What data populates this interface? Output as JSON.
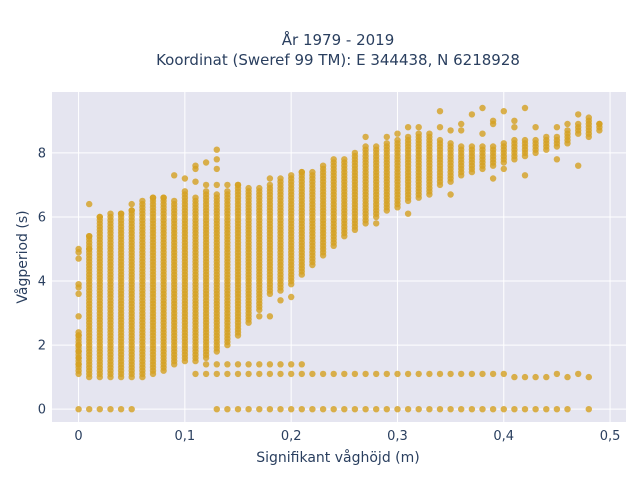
{
  "chart_data": {
    "type": "scatter",
    "title_line1": "År 1979 - 2019",
    "title_line2": "Koordinat (Sweref 99 TM): E 344438, N 6218928",
    "xlabel": "Signifikant våghöjd (m)",
    "ylabel": "Vågperiod (s)",
    "xlim": [
      -0.025,
      0.515
    ],
    "ylim": [
      -0.4,
      9.9
    ],
    "x_ticks": [
      0,
      0.1,
      0.2,
      0.3,
      0.4,
      0.5
    ],
    "x_tick_labels": [
      "0",
      "0,1",
      "0,2",
      "0,3",
      "0,4",
      "0,5"
    ],
    "y_ticks": [
      0,
      2,
      4,
      6,
      8
    ],
    "y_tick_labels": [
      "0",
      "2",
      "4",
      "6",
      "8"
    ],
    "grid": true,
    "plot_bg": "#E5E5F0",
    "marker_color": "#D4A020",
    "columns": [
      {
        "x": 0.0,
        "main": [
          1.1,
          2.4
        ],
        "zero": true,
        "extras": [
          1.4,
          1.6,
          1.8,
          2.0,
          2.3,
          2.9,
          3.6,
          3.8,
          3.9,
          4.7,
          4.9,
          5.0
        ]
      },
      {
        "x": 0.01,
        "main": [
          1.0,
          5.4
        ],
        "zero": true,
        "extras": [
          5.0,
          5.4,
          6.4
        ]
      },
      {
        "x": 0.02,
        "main": [
          1.0,
          6.0
        ],
        "zero": true,
        "extras": [
          6.0
        ]
      },
      {
        "x": 0.03,
        "main": [
          1.0,
          6.0
        ],
        "zero": true,
        "extras": [
          6.1
        ]
      },
      {
        "x": 0.04,
        "main": [
          1.0,
          6.1
        ],
        "zero": true,
        "extras": [
          6.1
        ]
      },
      {
        "x": 0.05,
        "main": [
          1.0,
          6.2
        ],
        "zero": true,
        "extras": [
          6.2,
          6.4
        ]
      },
      {
        "x": 0.06,
        "main": [
          1.0,
          6.4
        ],
        "zero": false,
        "extras": [
          6.5
        ]
      },
      {
        "x": 0.07,
        "main": [
          1.1,
          6.6
        ],
        "zero": false,
        "extras": [
          6.6
        ]
      },
      {
        "x": 0.08,
        "main": [
          1.2,
          6.6
        ],
        "zero": false,
        "extras": [
          6.6
        ]
      },
      {
        "x": 0.09,
        "main": [
          1.4,
          6.5
        ],
        "zero": false,
        "extras": [
          7.3
        ]
      },
      {
        "x": 0.1,
        "main": [
          1.5,
          6.8
        ],
        "zero": false,
        "extras": [
          7.2
        ]
      },
      {
        "x": 0.11,
        "main": [
          1.5,
          6.6
        ],
        "zero": false,
        "extras": [
          1.1,
          7.1,
          7.5,
          7.6
        ]
      },
      {
        "x": 0.12,
        "main": [
          1.6,
          6.8
        ],
        "zero": false,
        "extras": [
          1.1,
          1.4,
          7.0,
          7.7
        ]
      },
      {
        "x": 0.13,
        "main": [
          1.8,
          6.7
        ],
        "zero": true,
        "extras": [
          1.1,
          1.4,
          7.0,
          7.5,
          7.8,
          8.1
        ]
      },
      {
        "x": 0.14,
        "main": [
          2.0,
          6.8
        ],
        "zero": true,
        "extras": [
          1.1,
          1.4,
          7.0
        ]
      },
      {
        "x": 0.15,
        "main": [
          2.3,
          7.0
        ],
        "zero": true,
        "extras": [
          1.1,
          1.4,
          7.0
        ]
      },
      {
        "x": 0.16,
        "main": [
          2.7,
          6.9
        ],
        "zero": true,
        "extras": [
          1.1,
          1.4
        ]
      },
      {
        "x": 0.17,
        "main": [
          3.1,
          6.9
        ],
        "zero": true,
        "extras": [
          1.1,
          1.4,
          2.9
        ]
      },
      {
        "x": 0.18,
        "main": [
          3.6,
          7.0
        ],
        "zero": true,
        "extras": [
          1.1,
          1.4,
          2.9,
          7.2
        ]
      },
      {
        "x": 0.19,
        "main": [
          3.7,
          7.2
        ],
        "zero": true,
        "extras": [
          1.1,
          1.4,
          3.4
        ]
      },
      {
        "x": 0.2,
        "main": [
          3.9,
          7.3
        ],
        "zero": true,
        "extras": [
          1.1,
          1.4,
          3.5
        ]
      },
      {
        "x": 0.21,
        "main": [
          4.2,
          7.4
        ],
        "zero": true,
        "extras": [
          1.1,
          1.4,
          7.4
        ]
      },
      {
        "x": 0.22,
        "main": [
          4.5,
          7.4
        ],
        "zero": true,
        "extras": [
          1.1
        ]
      },
      {
        "x": 0.23,
        "main": [
          4.8,
          7.6
        ],
        "zero": true,
        "extras": [
          1.1
        ]
      },
      {
        "x": 0.24,
        "main": [
          5.1,
          7.8
        ],
        "zero": true,
        "extras": [
          1.1
        ]
      },
      {
        "x": 0.25,
        "main": [
          5.4,
          7.8
        ],
        "zero": true,
        "extras": [
          1.1
        ]
      },
      {
        "x": 0.26,
        "main": [
          5.6,
          8.0
        ],
        "zero": true,
        "extras": [
          1.1
        ]
      },
      {
        "x": 0.27,
        "main": [
          5.8,
          8.2
        ],
        "zero": true,
        "extras": [
          1.1,
          8.5
        ]
      },
      {
        "x": 0.28,
        "main": [
          6.0,
          8.2
        ],
        "zero": true,
        "extras": [
          1.1,
          5.8
        ]
      },
      {
        "x": 0.29,
        "main": [
          6.2,
          8.3
        ],
        "zero": true,
        "extras": [
          1.1,
          8.5
        ]
      },
      {
        "x": 0.3,
        "main": [
          6.3,
          8.4
        ],
        "zero": true,
        "extras": [
          1.1,
          8.6
        ]
      },
      {
        "x": 0.31,
        "main": [
          6.5,
          8.5
        ],
        "zero": true,
        "extras": [
          1.1,
          6.1,
          8.8
        ]
      },
      {
        "x": 0.32,
        "main": [
          6.6,
          8.6
        ],
        "zero": true,
        "extras": [
          1.1,
          8.8
        ]
      },
      {
        "x": 0.33,
        "main": [
          6.8,
          8.6
        ],
        "zero": true,
        "extras": [
          1.1,
          6.7
        ]
      },
      {
        "x": 0.34,
        "main": [
          7.0,
          8.4
        ],
        "zero": true,
        "extras": [
          1.1,
          8.8,
          9.3
        ]
      },
      {
        "x": 0.35,
        "main": [
          7.1,
          8.3
        ],
        "zero": true,
        "extras": [
          1.1,
          6.7,
          8.7
        ]
      },
      {
        "x": 0.36,
        "main": [
          7.3,
          8.2
        ],
        "zero": true,
        "extras": [
          1.1,
          8.7,
          8.9
        ]
      },
      {
        "x": 0.37,
        "main": [
          7.4,
          8.2
        ],
        "zero": true,
        "extras": [
          1.1,
          9.2
        ]
      },
      {
        "x": 0.38,
        "main": [
          7.5,
          8.2
        ],
        "zero": true,
        "extras": [
          1.1,
          8.6,
          9.4
        ]
      },
      {
        "x": 0.39,
        "main": [
          7.6,
          8.2
        ],
        "zero": true,
        "extras": [
          1.1,
          7.2,
          8.9,
          9.0
        ]
      },
      {
        "x": 0.4,
        "main": [
          7.7,
          8.3
        ],
        "zero": true,
        "extras": [
          1.1,
          7.5,
          9.3
        ]
      },
      {
        "x": 0.41,
        "main": [
          7.8,
          8.4
        ],
        "zero": true,
        "extras": [
          1.0,
          8.8,
          9.0
        ]
      },
      {
        "x": 0.42,
        "main": [
          7.9,
          8.4
        ],
        "zero": true,
        "extras": [
          1.0,
          7.3,
          9.4
        ]
      },
      {
        "x": 0.43,
        "main": [
          8.0,
          8.4
        ],
        "zero": true,
        "extras": [
          1.0,
          8.8
        ]
      },
      {
        "x": 0.44,
        "main": [
          8.1,
          8.5
        ],
        "zero": true,
        "extras": [
          1.0
        ]
      },
      {
        "x": 0.45,
        "main": [
          8.2,
          8.5
        ],
        "zero": true,
        "extras": [
          1.1,
          7.8,
          8.8
        ]
      },
      {
        "x": 0.46,
        "main": [
          8.3,
          8.7
        ],
        "zero": true,
        "extras": [
          1.0,
          8.9
        ]
      },
      {
        "x": 0.47,
        "main": [
          8.6,
          8.9
        ],
        "zero": false,
        "extras": [
          1.1,
          7.6,
          9.2
        ]
      },
      {
        "x": 0.48,
        "main": [
          8.6,
          9.0
        ],
        "zero": true,
        "extras": [
          1.0,
          8.5,
          9.1
        ]
      },
      {
        "x": 0.49,
        "main": [
          8.7,
          8.9
        ],
        "zero": false,
        "extras": [
          8.9
        ]
      }
    ]
  }
}
